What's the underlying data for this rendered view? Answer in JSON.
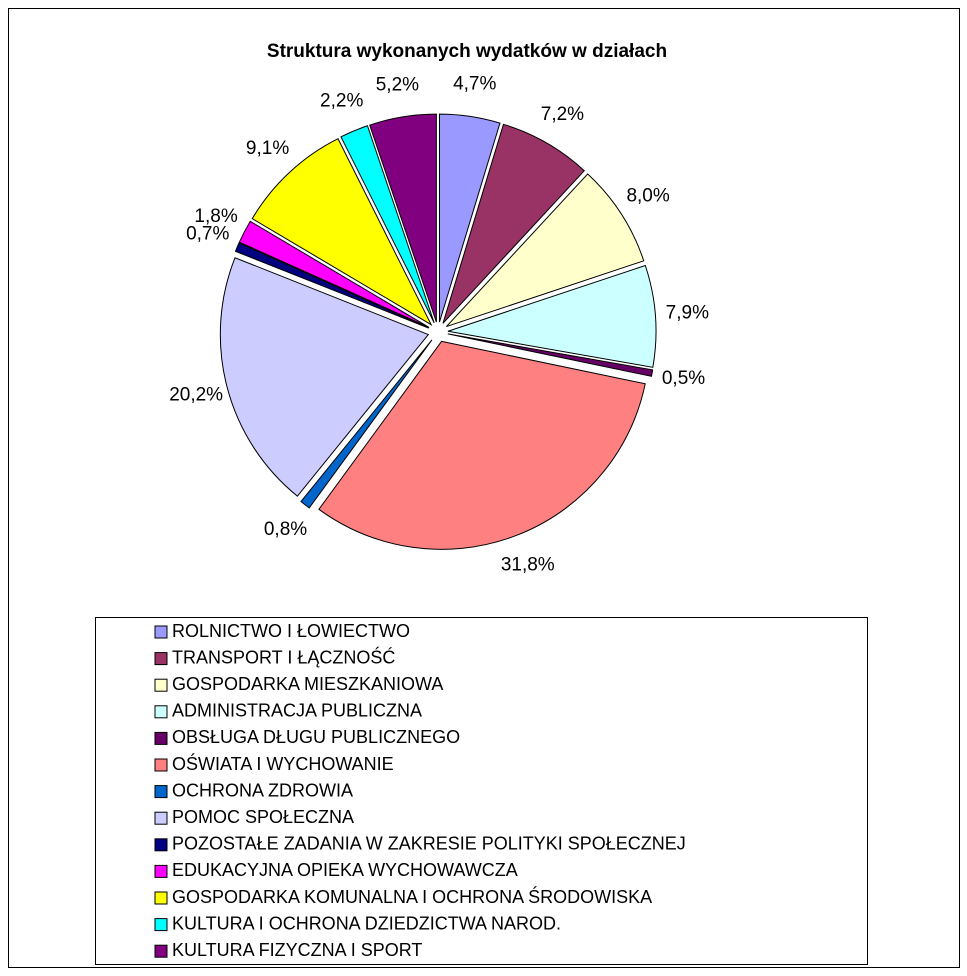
{
  "chart_data": {
    "type": "pie",
    "title": "Struktura wykonanych wydatków w działach",
    "categories": [
      "ROLNICTWO  I  ŁOWIECTWO",
      "TRANSPORT  I  ŁĄCZNOŚĆ",
      "GOSPODARKA MIESZKANIOWA",
      "ADMINISTRACJA  PUBLICZNA",
      "OBSŁUGA DŁUGU PUBLICZNEGO",
      "OŚWIATA I WYCHOWANIE",
      "OCHRONA ZDROWIA",
      "POMOC  SPOŁECZNA",
      "POZOSTAŁE ZADANIA W ZAKRESIE POLITYKI SPOŁECZNEJ",
      "EDUKACYJNA OPIEKA WYCHOWAWCZA",
      "GOSPODARKA KOMUNALNA I OCHRONA ŚRODOWISKA",
      "KULTURA I  OCHRONA DZIEDZICTWA NAROD.",
      "KULTURA FIZYCZNA I SPORT"
    ],
    "values": [
      4.7,
      7.2,
      8.0,
      7.9,
      0.5,
      31.8,
      0.8,
      20.2,
      0.7,
      1.8,
      9.1,
      2.2,
      5.2
    ],
    "value_labels": [
      "4,7%",
      "7,2%",
      "8,0%",
      "7,9%",
      "0,5%",
      "31,8%",
      "0,8%",
      "20,2%",
      "0,7%",
      "1,8%",
      "9,1%",
      "2,2%",
      "5,2%"
    ],
    "colors": [
      "#9999ff",
      "#993366",
      "#ffffcc",
      "#ccffff",
      "#660066",
      "#ff8080",
      "#0066cc",
      "#ccccff",
      "#000080",
      "#ff00ff",
      "#ffff00",
      "#00ffff",
      "#800080"
    ],
    "legend": "bottom"
  }
}
